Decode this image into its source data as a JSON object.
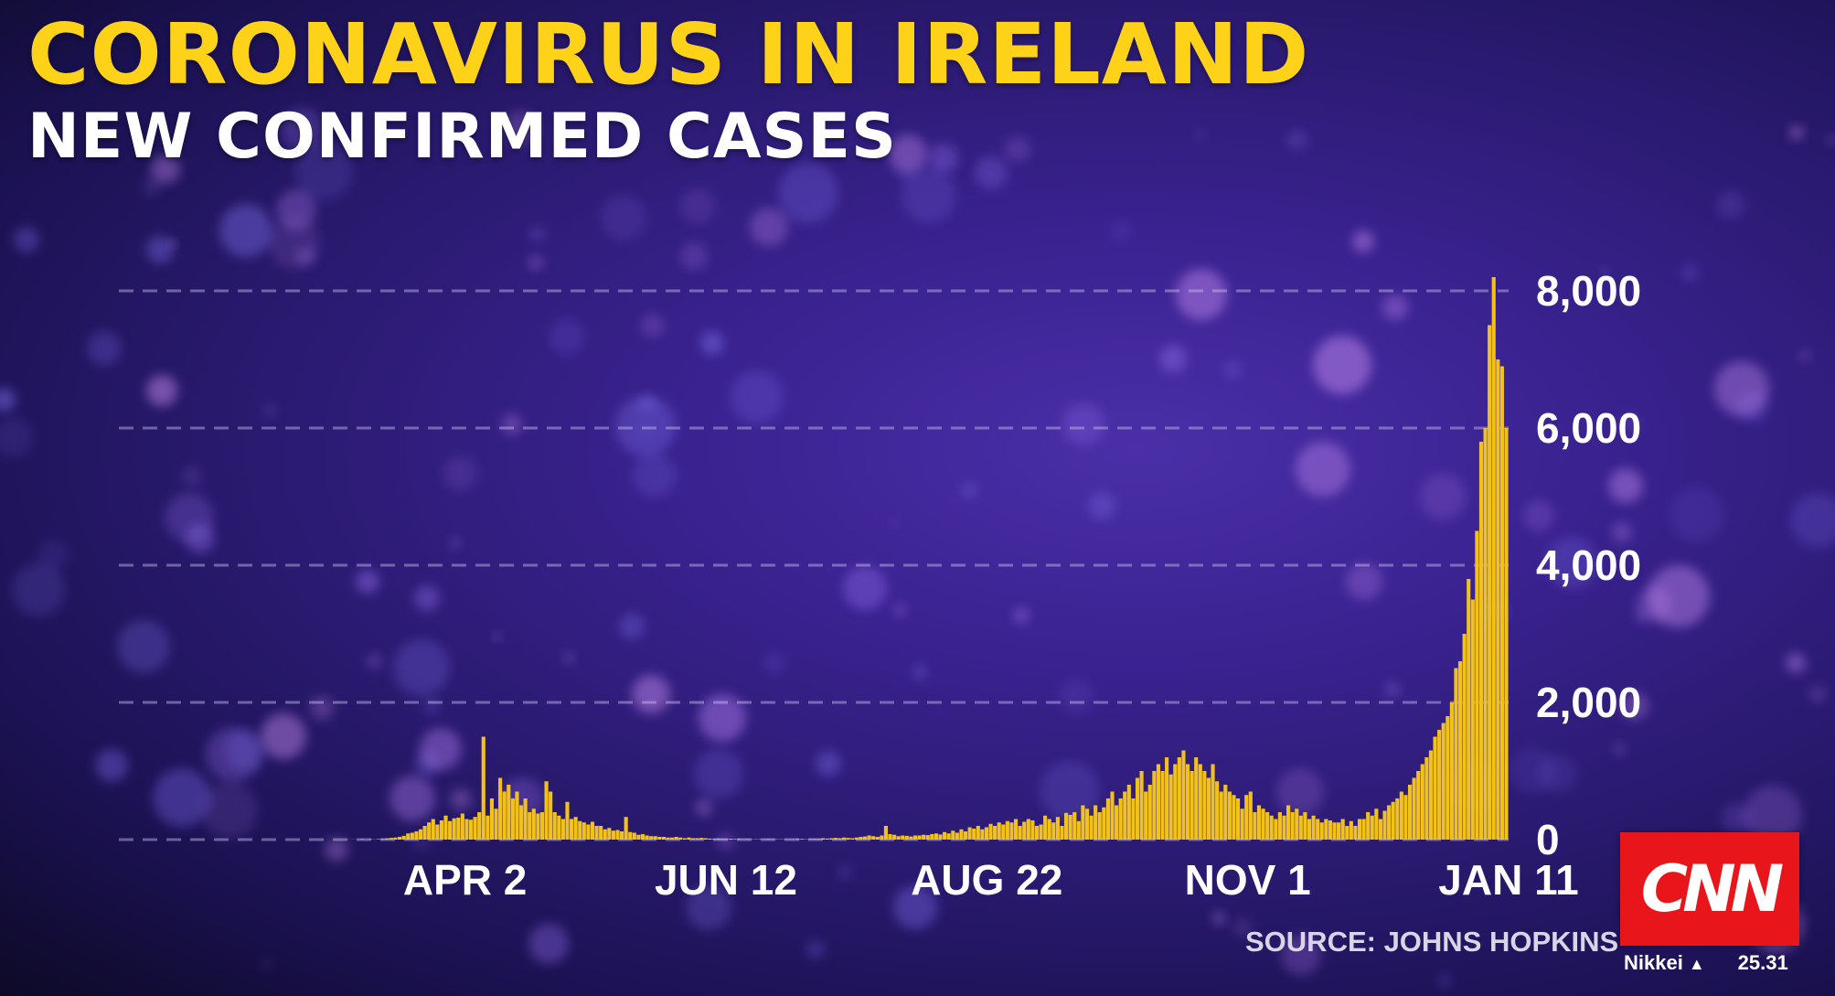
{
  "header": {
    "title": "CORONAVIRUS IN IRELAND",
    "subtitle": "NEW CONFIRMED CASES"
  },
  "source": "SOURCE: JOHNS HOPKINS",
  "logo": "CNN",
  "ticker": {
    "name": "Nikkei",
    "direction_icon": "up-triangle-icon",
    "value": "25.31"
  },
  "colors": {
    "bars": "#f2c21b",
    "title": "#ffd21a",
    "logo": "#e8161b"
  },
  "chart_data": {
    "type": "bar",
    "title": "NEW CONFIRMED CASES",
    "xlabel": "",
    "ylabel": "",
    "ylim": [
      0,
      8000
    ],
    "yticks": [
      "0",
      "2,000",
      "4,000",
      "6,000",
      "8,000"
    ],
    "ytick_values": [
      0,
      2000,
      4000,
      6000,
      8000
    ],
    "xticks": [
      "APR 2",
      "JUN 12",
      "AUG 22",
      "NOV 1",
      "JAN 11"
    ],
    "x_start": "2020-03-01",
    "x_end": "2021-01-11",
    "grid": true,
    "series": [
      {
        "name": "New confirmed cases",
        "values": [
          1,
          2,
          1,
          6,
          2,
          6,
          3,
          8,
          10,
          18,
          25,
          30,
          40,
          55,
          90,
          100,
          120,
          150,
          200,
          250,
          300,
          220,
          280,
          350,
          270,
          310,
          320,
          380,
          300,
          290,
          330,
          400,
          1500,
          350,
          600,
          450,
          900,
          700,
          800,
          600,
          700,
          500,
          600,
          400,
          450,
          380,
          400,
          850,
          700,
          400,
          350,
          300,
          550,
          300,
          330,
          270,
          250,
          220,
          260,
          200,
          200,
          150,
          170,
          130,
          140,
          120,
          330,
          110,
          100,
          70,
          80,
          60,
          50,
          50,
          40,
          40,
          30,
          30,
          40,
          30,
          20,
          30,
          20,
          20,
          25,
          20,
          15,
          10,
          15,
          10,
          10,
          12,
          8,
          10,
          5,
          8,
          5,
          5,
          6,
          5,
          8,
          5,
          5,
          5,
          5,
          5,
          5,
          10,
          10,
          5,
          10,
          10,
          10,
          20,
          15,
          20,
          25,
          20,
          30,
          25,
          20,
          30,
          40,
          45,
          60,
          50,
          40,
          60,
          200,
          80,
          70,
          50,
          60,
          55,
          45,
          60,
          60,
          70,
          65,
          80,
          90,
          75,
          110,
          90,
          130,
          100,
          150,
          120,
          180,
          160,
          200,
          150,
          180,
          230,
          200,
          250,
          220,
          270,
          250,
          300,
          200,
          260,
          300,
          280,
          200,
          220,
          350,
          300,
          250,
          330,
          200,
          390,
          360,
          400,
          270,
          500,
          450,
          350,
          500,
          400,
          470,
          600,
          700,
          500,
          600,
          700,
          800,
          600,
          900,
          1000,
          700,
          800,
          1000,
          1100,
          1000,
          1200,
          950,
          1100,
          1200,
          1300,
          1100,
          1000,
          1200,
          1100,
          1000,
          900,
          1100,
          850,
          700,
          800,
          700,
          650,
          600,
          450,
          650,
          700,
          400,
          500,
          450,
          400,
          350,
          300,
          400,
          350,
          500,
          400,
          450,
          350,
          400,
          300,
          350,
          300,
          250,
          300,
          280,
          250,
          250,
          300,
          200,
          270,
          200,
          300,
          300,
          400,
          350,
          450,
          300,
          420,
          500,
          550,
          600,
          700,
          650,
          800,
          900,
          1000,
          1100,
          1200,
          1300,
          1500,
          1600,
          1700,
          1800,
          2000,
          2500,
          2600,
          3000,
          3800,
          3500,
          4500,
          5800,
          6000,
          7500,
          8200,
          7000,
          6900,
          6000
        ]
      }
    ]
  }
}
